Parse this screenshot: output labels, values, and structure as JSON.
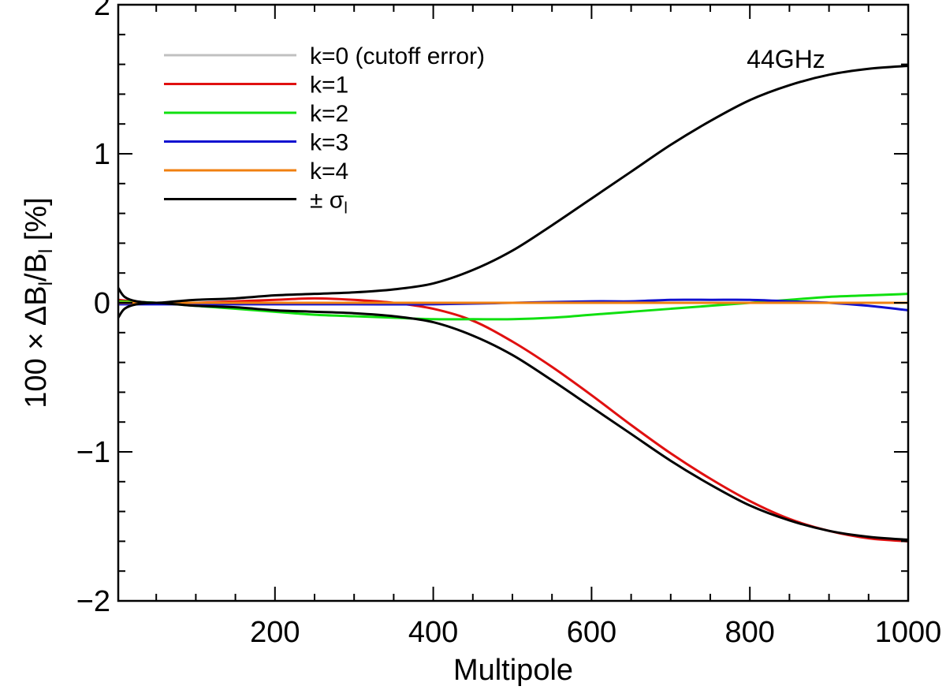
{
  "chart_data": {
    "type": "line",
    "title": "",
    "annotation": "44GHz",
    "xlabel": "Multipole",
    "ylabel_parts": {
      "prefix": "100 × ΔB",
      "sub1": "l",
      "mid": "/B",
      "sub2": "l",
      "suffix": " [%]"
    },
    "xlim": [
      2,
      1000
    ],
    "ylim": [
      -2,
      2
    ],
    "xticks": [
      200,
      400,
      600,
      800,
      1000
    ],
    "xtick_labels": [
      "200",
      "400",
      "600",
      "800",
      "1000"
    ],
    "yticks": [
      -2,
      -1,
      0,
      1,
      2
    ],
    "ytick_labels": [
      "−2",
      "−1",
      "0",
      "1",
      "2"
    ],
    "legend_position": "top-left",
    "legend": [
      {
        "label": "k=0 (cutoff error)",
        "color": "#c0c0c0"
      },
      {
        "label": "k=1",
        "color": "#e01010"
      },
      {
        "label": "k=2",
        "color": "#10e010"
      },
      {
        "label": "k=3",
        "color": "#1010d0"
      },
      {
        "label": "k=4",
        "color": "#f08010"
      },
      {
        "label": "± σ",
        "sub": "l",
        "color": "#000000"
      }
    ],
    "series": [
      {
        "name": "k=0 (cutoff error)",
        "color": "#c0c0c0",
        "x": [
          2,
          100,
          200,
          300,
          400,
          500,
          600,
          700,
          800,
          900,
          1000
        ],
        "y": [
          0,
          0,
          0,
          0,
          0,
          0,
          0,
          0,
          0,
          0,
          0
        ]
      },
      {
        "name": "k=1",
        "color": "#e01010",
        "x": [
          2,
          20,
          50,
          100,
          150,
          200,
          250,
          300,
          350,
          400,
          450,
          500,
          550,
          600,
          650,
          700,
          750,
          800,
          850,
          900,
          950,
          1000
        ],
        "y": [
          0.02,
          0.01,
          0.0,
          0.0,
          0.01,
          0.02,
          0.03,
          0.02,
          0.0,
          -0.04,
          -0.12,
          -0.26,
          -0.43,
          -0.62,
          -0.82,
          -1.01,
          -1.18,
          -1.33,
          -1.45,
          -1.53,
          -1.58,
          -1.6
        ]
      },
      {
        "name": "k=2",
        "color": "#10e010",
        "x": [
          2,
          50,
          100,
          150,
          200,
          250,
          300,
          350,
          400,
          450,
          500,
          550,
          600,
          650,
          700,
          750,
          800,
          850,
          900,
          950,
          1000
        ],
        "y": [
          0.01,
          0.0,
          -0.02,
          -0.04,
          -0.06,
          -0.08,
          -0.09,
          -0.1,
          -0.11,
          -0.11,
          -0.11,
          -0.1,
          -0.08,
          -0.06,
          -0.04,
          -0.02,
          0.0,
          0.02,
          0.04,
          0.05,
          0.06
        ]
      },
      {
        "name": "k=3",
        "color": "#1010d0",
        "x": [
          2,
          100,
          200,
          300,
          400,
          500,
          600,
          650,
          700,
          750,
          800,
          850,
          900,
          950,
          1000
        ],
        "y": [
          -0.01,
          -0.01,
          -0.01,
          -0.01,
          -0.01,
          0.0,
          0.01,
          0.01,
          0.02,
          0.02,
          0.02,
          0.01,
          0.0,
          -0.02,
          -0.05
        ]
      },
      {
        "name": "k=4",
        "color": "#f08010",
        "x": [
          2,
          200,
          400,
          600,
          800,
          1000
        ],
        "y": [
          0,
          0,
          0,
          0,
          0,
          0
        ]
      },
      {
        "name": "+σ",
        "color": "#000000",
        "x": [
          2,
          10,
          25,
          50,
          75,
          100,
          150,
          200,
          250,
          300,
          350,
          400,
          450,
          500,
          550,
          600,
          650,
          700,
          750,
          800,
          850,
          900,
          950,
          1000
        ],
        "y": [
          0.1,
          0.04,
          0.01,
          0.0,
          0.01,
          0.02,
          0.03,
          0.05,
          0.06,
          0.07,
          0.09,
          0.13,
          0.22,
          0.35,
          0.52,
          0.7,
          0.88,
          1.06,
          1.22,
          1.36,
          1.46,
          1.53,
          1.57,
          1.59
        ]
      },
      {
        "name": "−σ",
        "color": "#000000",
        "x": [
          2,
          10,
          25,
          50,
          75,
          100,
          150,
          200,
          250,
          300,
          350,
          400,
          450,
          500,
          550,
          600,
          650,
          700,
          750,
          800,
          850,
          900,
          950,
          1000
        ],
        "y": [
          -0.1,
          -0.04,
          -0.01,
          0.0,
          -0.01,
          -0.02,
          -0.03,
          -0.05,
          -0.06,
          -0.07,
          -0.09,
          -0.13,
          -0.22,
          -0.35,
          -0.52,
          -0.7,
          -0.88,
          -1.06,
          -1.22,
          -1.36,
          -1.46,
          -1.53,
          -1.57,
          -1.59
        ]
      }
    ]
  }
}
